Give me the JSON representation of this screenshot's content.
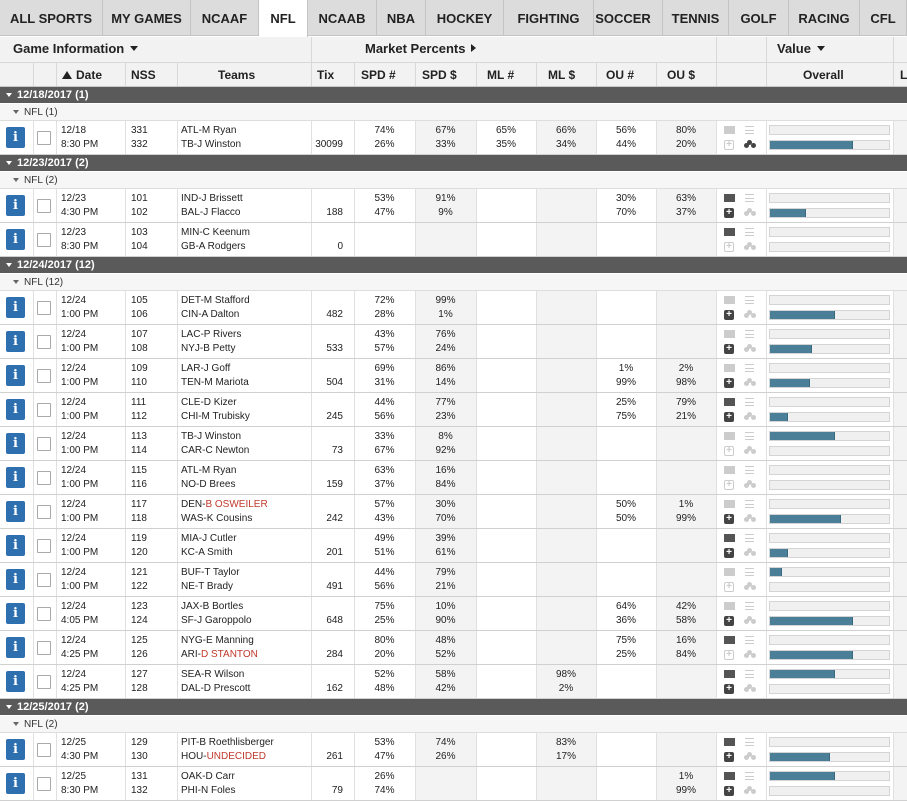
{
  "tabs": [
    {
      "label": "ALL SPORTS",
      "active": false
    },
    {
      "label": "MY GAMES",
      "active": false
    },
    {
      "label": "NCAAF",
      "active": false
    },
    {
      "label": "NFL",
      "active": true
    },
    {
      "label": "NCAAB",
      "active": false
    },
    {
      "label": "NBA",
      "active": false
    },
    {
      "label": "HOCKEY",
      "active": false
    },
    {
      "label": "FIGHTING",
      "active": false
    },
    {
      "label": "SOCCER",
      "active": false
    },
    {
      "label": "TENNIS",
      "active": false
    },
    {
      "label": "GOLF",
      "active": false
    },
    {
      "label": "RACING",
      "active": false
    },
    {
      "label": "CFL",
      "active": false
    }
  ],
  "header": {
    "game_info": "Game Information",
    "market_percents": "Market Percents",
    "value": "Value",
    "columns": {
      "date": "Date",
      "nss": "NSS",
      "teams": "Teams",
      "tix": "Tix",
      "spd_n": "SPD #",
      "spd_d": "SPD $",
      "ml_n": "ML #",
      "ml_d": "ML $",
      "ou_n": "OU #",
      "ou_d": "OU $",
      "overall": "Overall",
      "extra": "L"
    }
  },
  "colors": {
    "accent": "#2e6fb0",
    "bar": "#4a7f97",
    "date_bar": "#5a5a5a",
    "alert_text": "#c0392b"
  },
  "sections": [
    {
      "date": "12/18/2017 (1)",
      "group": "NFL (1)",
      "games": [
        {
          "date": "12/18",
          "time": "8:30 PM",
          "nss1": "331",
          "nss2": "332",
          "team1": "ATL-M Ryan",
          "team2": "TB-J Winston",
          "tix": "30099",
          "spd_n": [
            "74%",
            "26%"
          ],
          "spd_d": [
            "67%",
            "33%"
          ],
          "ml_n": [
            "65%",
            "35%"
          ],
          "ml_d": [
            "66%",
            "34%"
          ],
          "ou_n": [
            "56%",
            "44%"
          ],
          "ou_d": [
            "80%",
            "20%"
          ],
          "cloud": false,
          "plus": false,
          "people": true,
          "bar1": 0,
          "bar2": 0.7
        }
      ]
    },
    {
      "date": "12/23/2017 (2)",
      "group": "NFL (2)",
      "games": [
        {
          "date": "12/23",
          "time": "4:30 PM",
          "nss1": "101",
          "nss2": "102",
          "team1": "IND-J Brissett",
          "team2": "BAL-J Flacco",
          "tix": "188",
          "spd_n": [
            "53%",
            "47%"
          ],
          "spd_d": [
            "91%",
            "9%"
          ],
          "ml_n": [
            "",
            ""
          ],
          "ml_d": [
            "",
            ""
          ],
          "ou_n": [
            "30%",
            "70%"
          ],
          "ou_d": [
            "63%",
            "37%"
          ],
          "cloud": true,
          "plus": true,
          "people": false,
          "bar1": 0,
          "bar2": 0.3
        },
        {
          "date": "12/23",
          "time": "8:30 PM",
          "nss1": "103",
          "nss2": "104",
          "team1": "MIN-C Keenum",
          "team2": "GB-A Rodgers",
          "tix": "0",
          "spd_n": [
            "",
            ""
          ],
          "spd_d": [
            "",
            ""
          ],
          "ml_n": [
            "",
            ""
          ],
          "ml_d": [
            "",
            ""
          ],
          "ou_n": [
            "",
            ""
          ],
          "ou_d": [
            "",
            ""
          ],
          "cloud": true,
          "plus": false,
          "people": false,
          "bar1": 0,
          "bar2": 0
        }
      ]
    },
    {
      "date": "12/24/2017 (12)",
      "group": "NFL (12)",
      "games": [
        {
          "date": "12/24",
          "time": "1:00 PM",
          "nss1": "105",
          "nss2": "106",
          "team1": "DET-M Stafford",
          "team2": "CIN-A Dalton",
          "tix": "482",
          "spd_n": [
            "72%",
            "28%"
          ],
          "spd_d": [
            "99%",
            "1%"
          ],
          "ml_n": [
            "",
            ""
          ],
          "ml_d": [
            "",
            ""
          ],
          "ou_n": [
            "",
            ""
          ],
          "ou_d": [
            "",
            ""
          ],
          "cloud": false,
          "plus": true,
          "people": false,
          "bar1": 0,
          "bar2": 0.55
        },
        {
          "date": "12/24",
          "time": "1:00 PM",
          "nss1": "107",
          "nss2": "108",
          "team1": "LAC-P Rivers",
          "team2": "NYJ-B Petty",
          "tix": "533",
          "spd_n": [
            "43%",
            "57%"
          ],
          "spd_d": [
            "76%",
            "24%"
          ],
          "ml_n": [
            "",
            ""
          ],
          "ml_d": [
            "",
            ""
          ],
          "ou_n": [
            "",
            ""
          ],
          "ou_d": [
            "",
            ""
          ],
          "cloud": false,
          "plus": true,
          "people": false,
          "bar1": 0,
          "bar2": 0.35
        },
        {
          "date": "12/24",
          "time": "1:00 PM",
          "nss1": "109",
          "nss2": "110",
          "team1": "LAR-J Goff",
          "team2": "TEN-M Mariota",
          "tix": "504",
          "spd_n": [
            "69%",
            "31%"
          ],
          "spd_d": [
            "86%",
            "14%"
          ],
          "ml_n": [
            "",
            ""
          ],
          "ml_d": [
            "",
            ""
          ],
          "ou_n": [
            "1%",
            "99%"
          ],
          "ou_d": [
            "2%",
            "98%"
          ],
          "cloud": false,
          "plus": true,
          "people": false,
          "bar1": 0,
          "bar2": 0.34
        },
        {
          "date": "12/24",
          "time": "1:00 PM",
          "nss1": "111",
          "nss2": "112",
          "team1": "CLE-D Kizer",
          "team2": "CHI-M Trubisky",
          "tix": "245",
          "spd_n": [
            "44%",
            "56%"
          ],
          "spd_d": [
            "77%",
            "23%"
          ],
          "ml_n": [
            "",
            ""
          ],
          "ml_d": [
            "",
            ""
          ],
          "ou_n": [
            "25%",
            "75%"
          ],
          "ou_d": [
            "79%",
            "21%"
          ],
          "cloud": true,
          "plus": true,
          "people": false,
          "bar1": 0,
          "bar2": 0.15
        },
        {
          "date": "12/24",
          "time": "1:00 PM",
          "nss1": "113",
          "nss2": "114",
          "team1": "TB-J Winston",
          "team2": "CAR-C Newton",
          "tix": "73",
          "spd_n": [
            "33%",
            "67%"
          ],
          "spd_d": [
            "8%",
            "92%"
          ],
          "ml_n": [
            "",
            ""
          ],
          "ml_d": [
            "",
            ""
          ],
          "ou_n": [
            "",
            ""
          ],
          "ou_d": [
            "",
            ""
          ],
          "cloud": false,
          "plus": false,
          "people": false,
          "bar1": 0.55,
          "bar2": 0
        },
        {
          "date": "12/24",
          "time": "1:00 PM",
          "nss1": "115",
          "nss2": "116",
          "team1": "ATL-M Ryan",
          "team2": "NO-D Brees",
          "tix": "159",
          "spd_n": [
            "63%",
            "37%"
          ],
          "spd_d": [
            "16%",
            "84%"
          ],
          "ml_n": [
            "",
            ""
          ],
          "ml_d": [
            "",
            ""
          ],
          "ou_n": [
            "",
            ""
          ],
          "ou_d": [
            "",
            ""
          ],
          "cloud": false,
          "plus": false,
          "people": false,
          "bar1": 0,
          "bar2": 0
        },
        {
          "date": "12/24",
          "time": "1:00 PM",
          "nss1": "117",
          "nss2": "118",
          "team1": "DEN-",
          "team1_alert": "B OSWEILER",
          "team2": "WAS-K Cousins",
          "tix": "242",
          "spd_n": [
            "57%",
            "43%"
          ],
          "spd_d": [
            "30%",
            "70%"
          ],
          "ml_n": [
            "",
            ""
          ],
          "ml_d": [
            "",
            ""
          ],
          "ou_n": [
            "50%",
            "50%"
          ],
          "ou_d": [
            "1%",
            "99%"
          ],
          "cloud": false,
          "plus": true,
          "people": false,
          "bar1": 0,
          "bar2": 0.6
        },
        {
          "date": "12/24",
          "time": "1:00 PM",
          "nss1": "119",
          "nss2": "120",
          "team1": "MIA-J Cutler",
          "team2": "KC-A Smith",
          "tix": "201",
          "spd_n": [
            "49%",
            "51%"
          ],
          "spd_d": [
            "39%",
            "61%"
          ],
          "ml_n": [
            "",
            ""
          ],
          "ml_d": [
            "",
            ""
          ],
          "ou_n": [
            "",
            ""
          ],
          "ou_d": [
            "",
            ""
          ],
          "cloud": true,
          "plus": true,
          "people": false,
          "bar1": 0,
          "bar2": 0.15
        },
        {
          "date": "12/24",
          "time": "1:00 PM",
          "nss1": "121",
          "nss2": "122",
          "team1": "BUF-T Taylor",
          "team2": "NE-T Brady",
          "tix": "491",
          "spd_n": [
            "44%",
            "56%"
          ],
          "spd_d": [
            "79%",
            "21%"
          ],
          "ml_n": [
            "",
            ""
          ],
          "ml_d": [
            "",
            ""
          ],
          "ou_n": [
            "",
            ""
          ],
          "ou_d": [
            "",
            ""
          ],
          "cloud": false,
          "plus": false,
          "people": false,
          "bar1": 0.1,
          "bar2": 0
        },
        {
          "date": "12/24",
          "time": "4:05 PM",
          "nss1": "123",
          "nss2": "124",
          "team1": "JAX-B Bortles",
          "team2": "SF-J Garoppolo",
          "tix": "648",
          "spd_n": [
            "75%",
            "25%"
          ],
          "spd_d": [
            "10%",
            "90%"
          ],
          "ml_n": [
            "",
            ""
          ],
          "ml_d": [
            "",
            ""
          ],
          "ou_n": [
            "64%",
            "36%"
          ],
          "ou_d": [
            "42%",
            "58%"
          ],
          "cloud": false,
          "plus": true,
          "people": false,
          "bar1": 0,
          "bar2": 0.7
        },
        {
          "date": "12/24",
          "time": "4:25 PM",
          "nss1": "125",
          "nss2": "126",
          "team1": "NYG-E Manning",
          "team2": "ARI-",
          "team2_alert": "D STANTON",
          "tix": "284",
          "spd_n": [
            "80%",
            "20%"
          ],
          "spd_d": [
            "48%",
            "52%"
          ],
          "ml_n": [
            "",
            ""
          ],
          "ml_d": [
            "",
            ""
          ],
          "ou_n": [
            "75%",
            "25%"
          ],
          "ou_d": [
            "16%",
            "84%"
          ],
          "cloud": true,
          "plus": false,
          "people": false,
          "bar1": 0,
          "bar2": 0.7
        },
        {
          "date": "12/24",
          "time": "4:25 PM",
          "nss1": "127",
          "nss2": "128",
          "team1": "SEA-R Wilson",
          "team2": "DAL-D Prescott",
          "tix": "162",
          "spd_n": [
            "52%",
            "48%"
          ],
          "spd_d": [
            "58%",
            "42%"
          ],
          "ml_n": [
            "",
            ""
          ],
          "ml_d": [
            "98%",
            "2%"
          ],
          "ou_n": [
            "",
            ""
          ],
          "ou_d": [
            "",
            ""
          ],
          "cloud": true,
          "plus": true,
          "people": false,
          "bar1": 0.55,
          "bar2": 0
        }
      ]
    },
    {
      "date": "12/25/2017 (2)",
      "group": "NFL (2)",
      "games": [
        {
          "date": "12/25",
          "time": "4:30 PM",
          "nss1": "129",
          "nss2": "130",
          "team1": "PIT-B Roethlisberger",
          "team2": "HOU-",
          "team2_alert": "UNDECIDED",
          "tix": "261",
          "spd_n": [
            "53%",
            "47%"
          ],
          "spd_d": [
            "74%",
            "26%"
          ],
          "ml_n": [
            "",
            ""
          ],
          "ml_d": [
            "83%",
            "17%"
          ],
          "ou_n": [
            "",
            ""
          ],
          "ou_d": [
            "",
            ""
          ],
          "cloud": true,
          "plus": true,
          "people": false,
          "bar1": 0,
          "bar2": 0.5
        },
        {
          "date": "12/25",
          "time": "8:30 PM",
          "nss1": "131",
          "nss2": "132",
          "team1": "OAK-D Carr",
          "team2": "PHI-N Foles",
          "tix": "79",
          "spd_n": [
            "26%",
            "74%"
          ],
          "spd_d": [
            "",
            ""
          ],
          "ml_n": [
            "",
            ""
          ],
          "ml_d": [
            "",
            ""
          ],
          "ou_n": [
            "",
            ""
          ],
          "ou_d": [
            "1%",
            "99%"
          ],
          "cloud": true,
          "plus": true,
          "people": false,
          "bar1": 0.55,
          "bar2": 0
        }
      ]
    }
  ]
}
